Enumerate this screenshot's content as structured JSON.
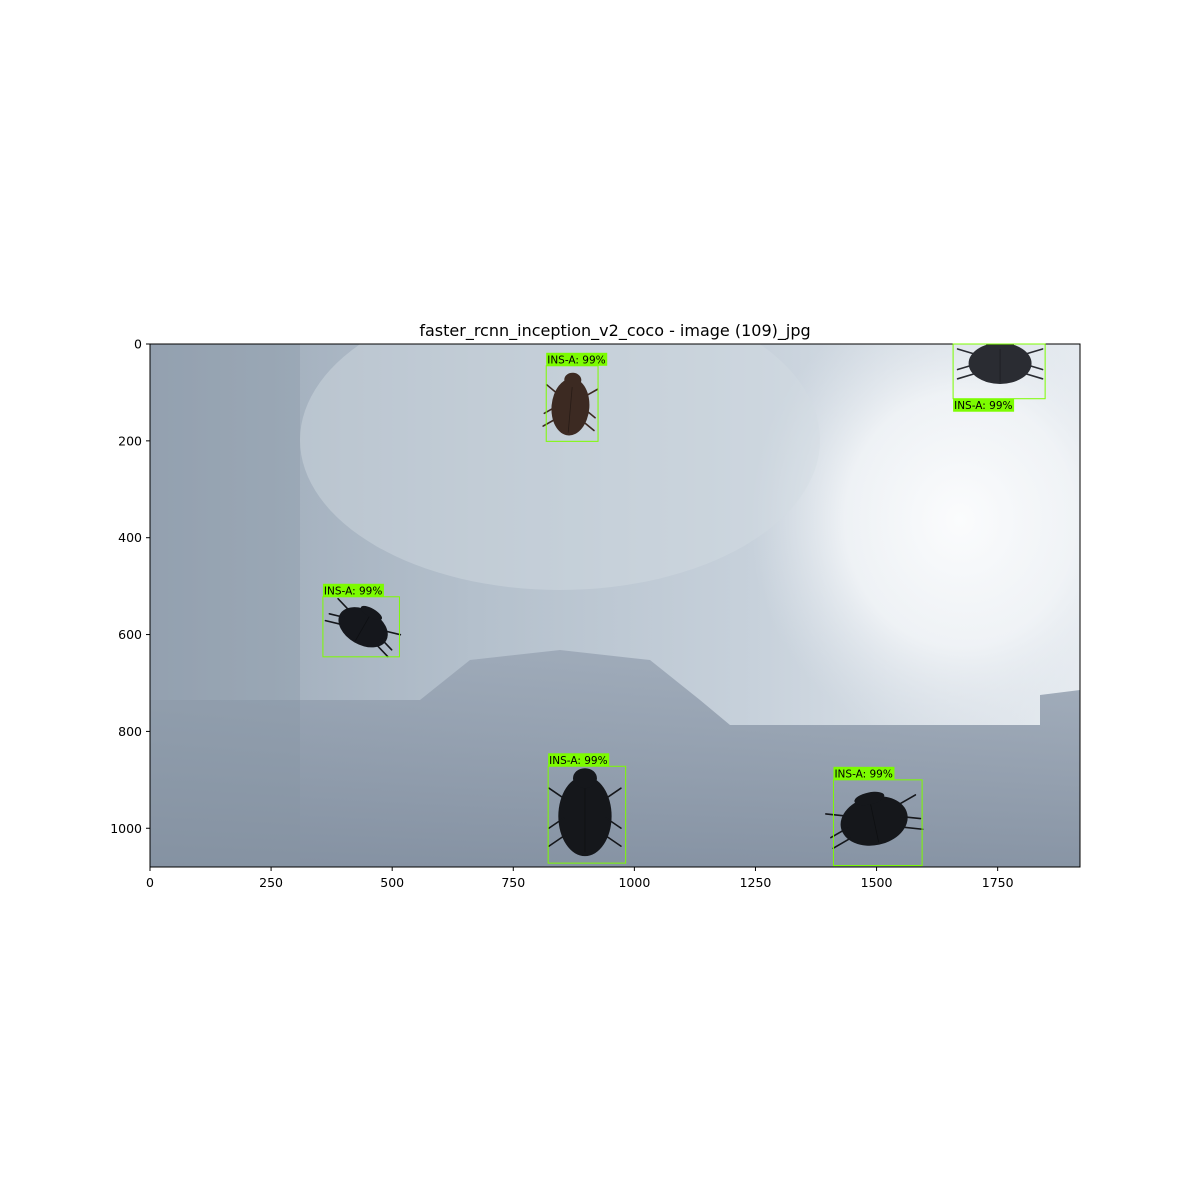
{
  "figure": {
    "title": "faster_rcnn_inception_v2_coco - image (109)_jpg"
  },
  "chart_data": {
    "type": "scatter",
    "description_kind": "image-with-detections",
    "image_size": [
      1920,
      1080
    ],
    "xlim": [
      0,
      1920
    ],
    "ylim": [
      1080,
      0
    ],
    "x_ticks": [
      0,
      250,
      500,
      750,
      1000,
      1250,
      1500,
      1750
    ],
    "x_tick_labels": [
      "0",
      "250",
      "500",
      "750",
      "1000",
      "1250",
      "1500",
      "1750"
    ],
    "y_ticks": [
      0,
      200,
      400,
      600,
      800,
      1000
    ],
    "y_tick_labels": [
      "0",
      "200",
      "400",
      "600",
      "800",
      "1000"
    ],
    "box_color": "#7cfc00",
    "detections": [
      {
        "label": "INS-A: 99%",
        "xmin": 818,
        "ymin": 45,
        "xmax": 925,
        "ymax": 201,
        "label_pos": "above"
      },
      {
        "label": "INS-A: 99%",
        "xmin": 1658,
        "ymin": 0,
        "xmax": 1848,
        "ymax": 113,
        "label_pos": "below"
      },
      {
        "label": "INS-A: 99%",
        "xmin": 357,
        "ymin": 522,
        "xmax": 515,
        "ymax": 646,
        "label_pos": "above"
      },
      {
        "label": "INS-A: 99%",
        "xmin": 822,
        "ymin": 872,
        "xmax": 982,
        "ymax": 1072,
        "label_pos": "above"
      },
      {
        "label": "INS-A: 99%",
        "xmin": 1411,
        "ymin": 900,
        "xmax": 1594,
        "ymax": 1077,
        "label_pos": "above"
      }
    ],
    "beetles": [
      {
        "x": 868,
        "y": 130,
        "w": 78,
        "h": 118,
        "angle": 5,
        "color": "#3c2a22"
      },
      {
        "x": 1755,
        "y": 40,
        "w": 130,
        "h": 85,
        "angle": 0,
        "color": "#2a2c32"
      },
      {
        "x": 440,
        "y": 585,
        "w": 110,
        "h": 72,
        "angle": 30,
        "color": "#15171c"
      },
      {
        "x": 898,
        "y": 975,
        "w": 110,
        "h": 165,
        "angle": 0,
        "color": "#15171b"
      },
      {
        "x": 1495,
        "y": 985,
        "w": 140,
        "h": 100,
        "angle": -12,
        "color": "#15171b"
      }
    ]
  }
}
